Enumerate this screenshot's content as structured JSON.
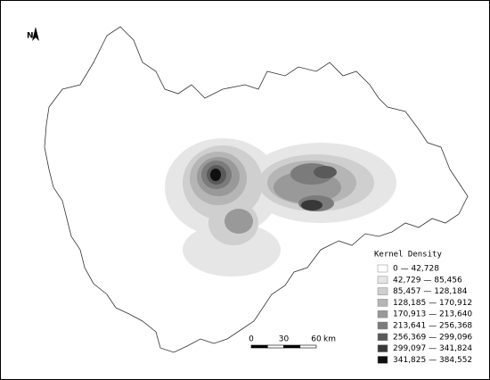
{
  "north_label": "N",
  "legend": {
    "title": "Kernel Density",
    "items": [
      {
        "label": "0 — 42,728",
        "color": "#ffffff"
      },
      {
        "label": "42,729 — 85,456",
        "color": "#e6e6e6"
      },
      {
        "label": "85,457 — 128,184",
        "color": "#cfcfcf"
      },
      {
        "label": "128,185 — 170,912",
        "color": "#b5b5b5"
      },
      {
        "label": "170,913 — 213,640",
        "color": "#999999"
      },
      {
        "label": "213,641 — 256,368",
        "color": "#7b7b7b"
      },
      {
        "label": "256,369 — 299,096",
        "color": "#5a5a5a"
      },
      {
        "label": "299,097 — 341,824",
        "color": "#383838"
      },
      {
        "label": "341,825 — 384,552",
        "color": "#0f0f0f"
      }
    ]
  },
  "scale_bar": {
    "labels": [
      "0",
      "30",
      "60"
    ],
    "unit": "km"
  }
}
